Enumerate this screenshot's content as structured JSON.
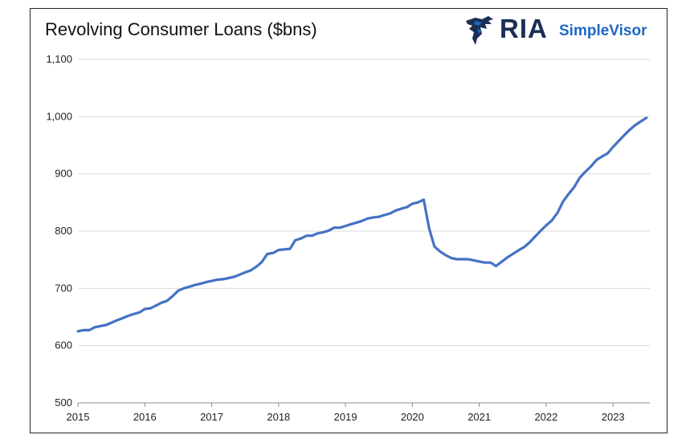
{
  "header": {
    "title": "Revolving Consumer Loans ($bns)",
    "logo_text": "RIA",
    "logo_sub": "SimpleVisor",
    "logo_colors": {
      "primary": "#1b2f55",
      "accent": "#1f67c2"
    }
  },
  "chart_data": {
    "type": "line",
    "title": "Revolving Consumer Loans ($bns)",
    "xlabel": "",
    "ylabel": "",
    "xlim": [
      2015,
      2023.55
    ],
    "ylim": [
      500,
      1100
    ],
    "y_ticks": [
      500,
      600,
      700,
      800,
      900,
      1000,
      1100
    ],
    "y_tick_labels": [
      "500",
      "600",
      "700",
      "800",
      "900",
      "1,000",
      "1,100"
    ],
    "x_ticks": [
      2015,
      2016,
      2017,
      2018,
      2019,
      2020,
      2021,
      2022,
      2023
    ],
    "x_tick_labels": [
      "2015",
      "2016",
      "2017",
      "2018",
      "2019",
      "2020",
      "2021",
      "2022",
      "2023"
    ],
    "grid": "horizontal",
    "legend": "none",
    "line_color": "#4472c4",
    "series": [
      {
        "points": [
          [
            2015.0,
            625
          ],
          [
            2015.08,
            627
          ],
          [
            2015.17,
            627
          ],
          [
            2015.25,
            632
          ],
          [
            2015.33,
            634
          ],
          [
            2015.42,
            636
          ],
          [
            2015.5,
            640
          ],
          [
            2015.58,
            644
          ],
          [
            2015.67,
            648
          ],
          [
            2015.75,
            652
          ],
          [
            2015.83,
            655
          ],
          [
            2015.92,
            658
          ],
          [
            2016.0,
            664
          ],
          [
            2016.08,
            665
          ],
          [
            2016.17,
            670
          ],
          [
            2016.25,
            675
          ],
          [
            2016.33,
            678
          ],
          [
            2016.42,
            687
          ],
          [
            2016.5,
            696
          ],
          [
            2016.58,
            700
          ],
          [
            2016.67,
            703
          ],
          [
            2016.75,
            706
          ],
          [
            2016.83,
            708
          ],
          [
            2016.92,
            711
          ],
          [
            2017.0,
            713
          ],
          [
            2017.08,
            715
          ],
          [
            2017.17,
            716
          ],
          [
            2017.25,
            718
          ],
          [
            2017.33,
            720
          ],
          [
            2017.42,
            724
          ],
          [
            2017.5,
            728
          ],
          [
            2017.58,
            731
          ],
          [
            2017.67,
            738
          ],
          [
            2017.75,
            746
          ],
          [
            2017.83,
            760
          ],
          [
            2017.92,
            762
          ],
          [
            2018.0,
            767
          ],
          [
            2018.08,
            768
          ],
          [
            2018.17,
            769
          ],
          [
            2018.25,
            784
          ],
          [
            2018.33,
            787
          ],
          [
            2018.42,
            792
          ],
          [
            2018.5,
            792
          ],
          [
            2018.58,
            796
          ],
          [
            2018.67,
            798
          ],
          [
            2018.75,
            801
          ],
          [
            2018.83,
            806
          ],
          [
            2018.92,
            806
          ],
          [
            2019.0,
            809
          ],
          [
            2019.08,
            812
          ],
          [
            2019.17,
            815
          ],
          [
            2019.25,
            818
          ],
          [
            2019.33,
            822
          ],
          [
            2019.42,
            824
          ],
          [
            2019.5,
            825
          ],
          [
            2019.58,
            828
          ],
          [
            2019.67,
            831
          ],
          [
            2019.75,
            836
          ],
          [
            2019.83,
            839
          ],
          [
            2019.92,
            842
          ],
          [
            2020.0,
            848
          ],
          [
            2020.08,
            850
          ],
          [
            2020.17,
            855
          ],
          [
            2020.25,
            805
          ],
          [
            2020.33,
            773
          ],
          [
            2020.42,
            764
          ],
          [
            2020.5,
            758
          ],
          [
            2020.58,
            753
          ],
          [
            2020.67,
            751
          ],
          [
            2020.75,
            751
          ],
          [
            2020.83,
            751
          ],
          [
            2020.92,
            749
          ],
          [
            2021.0,
            747
          ],
          [
            2021.08,
            745
          ],
          [
            2021.17,
            745
          ],
          [
            2021.25,
            739
          ],
          [
            2021.33,
            746
          ],
          [
            2021.42,
            754
          ],
          [
            2021.5,
            760
          ],
          [
            2021.58,
            766
          ],
          [
            2021.67,
            772
          ],
          [
            2021.75,
            780
          ],
          [
            2021.83,
            790
          ],
          [
            2021.92,
            801
          ],
          [
            2022.0,
            810
          ],
          [
            2022.08,
            818
          ],
          [
            2022.17,
            832
          ],
          [
            2022.25,
            851
          ],
          [
            2022.33,
            864
          ],
          [
            2022.42,
            877
          ],
          [
            2022.5,
            893
          ],
          [
            2022.58,
            903
          ],
          [
            2022.67,
            913
          ],
          [
            2022.75,
            924
          ],
          [
            2022.83,
            930
          ],
          [
            2022.92,
            936
          ],
          [
            2023.0,
            947
          ],
          [
            2023.08,
            957
          ],
          [
            2023.17,
            968
          ],
          [
            2023.25,
            977
          ],
          [
            2023.33,
            985
          ],
          [
            2023.42,
            992
          ],
          [
            2023.5,
            998
          ]
        ]
      }
    ]
  }
}
